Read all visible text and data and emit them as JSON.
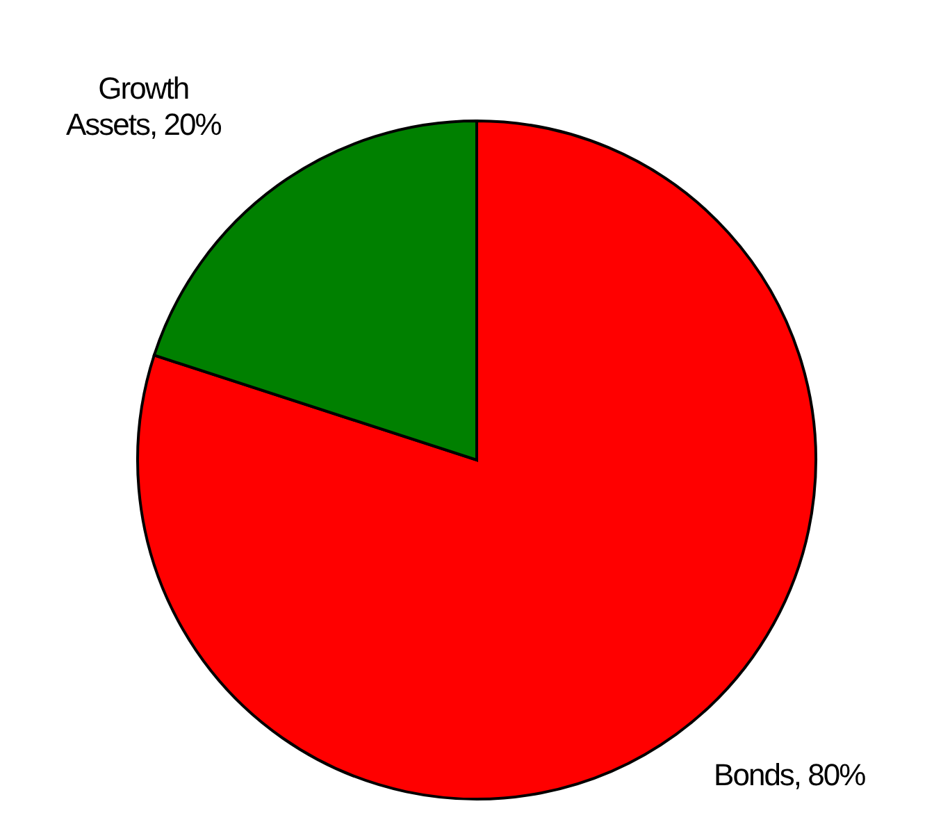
{
  "chart_data": {
    "type": "pie",
    "categories": [
      "Bonds",
      "Growth Assets"
    ],
    "values": [
      80,
      20
    ],
    "colors": [
      "#ff0000",
      "#008000"
    ],
    "value_labels": [
      "80%",
      "20%"
    ],
    "legend": false
  }
}
